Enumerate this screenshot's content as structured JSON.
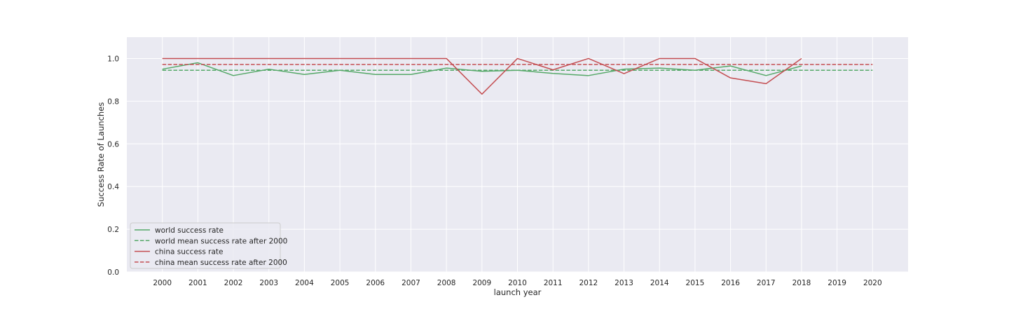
{
  "chart_data": {
    "type": "line",
    "xlabel": "launch year",
    "ylabel": "Success Rate of Launches",
    "x": [
      2000,
      2001,
      2002,
      2003,
      2004,
      2005,
      2006,
      2007,
      2008,
      2009,
      2010,
      2011,
      2012,
      2013,
      2014,
      2015,
      2016,
      2017,
      2018,
      2019,
      2020
    ],
    "x_tick_labels": [
      "2000",
      "2001",
      "2002",
      "2003",
      "2004",
      "2005",
      "2006",
      "2007",
      "2008",
      "2009",
      "2010",
      "2011",
      "2012",
      "2013",
      "2014",
      "2015",
      "2016",
      "2017",
      "2018",
      "2019",
      "2020"
    ],
    "y_ticks": [
      0.0,
      0.2,
      0.4,
      0.6,
      0.8,
      1.0
    ],
    "y_tick_labels": [
      "0.0",
      "0.2",
      "0.4",
      "0.6",
      "0.8",
      "1.0"
    ],
    "xlim": [
      1999,
      2021
    ],
    "ylim": [
      0.0,
      1.1
    ],
    "grid": true,
    "legend_position": "lower-left",
    "series": [
      {
        "name": "world success rate",
        "style": "solid",
        "color": "#55a868",
        "x": [
          2000,
          2001,
          2002,
          2003,
          2004,
          2005,
          2006,
          2007,
          2008,
          2009,
          2010,
          2011,
          2012,
          2013,
          2014,
          2015,
          2016,
          2017,
          2018
        ],
        "values": [
          0.95,
          0.98,
          0.92,
          0.95,
          0.925,
          0.945,
          0.925,
          0.925,
          0.955,
          0.94,
          0.945,
          0.93,
          0.92,
          0.95,
          0.955,
          0.945,
          0.965,
          0.92,
          0.965
        ]
      },
      {
        "name": "world mean success rate after 2000",
        "style": "dashed",
        "color": "#55a868",
        "x": [
          2000,
          2020
        ],
        "values": [
          0.945,
          0.945
        ]
      },
      {
        "name": "china success rate",
        "style": "solid",
        "color": "#c44e52",
        "x": [
          2000,
          2001,
          2002,
          2003,
          2004,
          2005,
          2006,
          2007,
          2008,
          2009,
          2010,
          2011,
          2012,
          2013,
          2014,
          2015,
          2016,
          2017,
          2018
        ],
        "values": [
          1.0,
          1.0,
          1.0,
          1.0,
          1.0,
          1.0,
          1.0,
          1.0,
          1.0,
          0.833,
          1.0,
          0.947,
          1.0,
          0.929,
          1.0,
          1.0,
          0.909,
          0.882,
          1.0
        ]
      },
      {
        "name": "china mean success rate after 2000",
        "style": "dashed",
        "color": "#c44e52",
        "x": [
          2000,
          2020
        ],
        "values": [
          0.972,
          0.972
        ]
      }
    ],
    "colors": {
      "plot_background": "#eaeaf2",
      "grid": "#ffffff",
      "text": "#262626"
    }
  }
}
